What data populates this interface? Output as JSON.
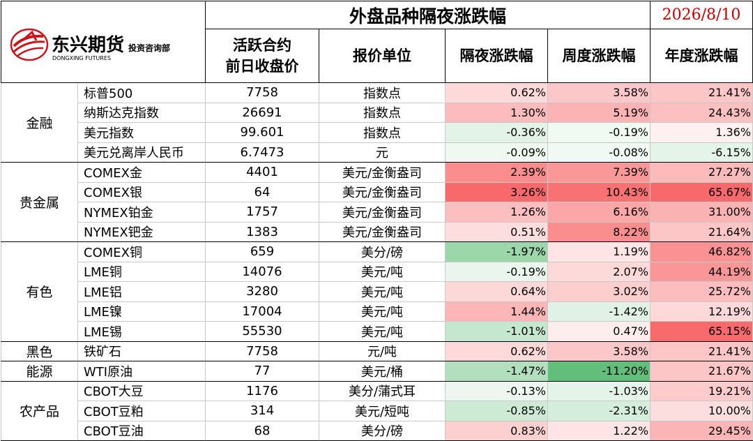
{
  "header": {
    "title": "外盘品种隔夜涨跌幅",
    "date": "2026/8/10",
    "logo_cn": "东兴期货",
    "logo_en": "DONGXING FUTURES",
    "logo_dept": "投资咨询部",
    "col_price_line1": "活跃合约",
    "col_price_line2": "前日收盘价",
    "col_unit": "报价单位",
    "col_overnight": "隔夜涨跌幅",
    "col_week": "周度涨跌幅",
    "col_year": "年度涨跌幅"
  },
  "groups": [
    {
      "category": "金融",
      "rows": [
        {
          "name": "标普500",
          "price": "7758",
          "unit": "指数点",
          "overnight": "0.62%",
          "week": "3.58%",
          "year": "21.41%"
        },
        {
          "name": "纳斯达克指数",
          "price": "26691",
          "unit": "指数点",
          "overnight": "1.30%",
          "week": "5.19%",
          "year": "24.43%"
        },
        {
          "name": "美元指数",
          "price": "99.601",
          "unit": "指数点",
          "overnight": "-0.36%",
          "week": "-0.19%",
          "year": "1.36%"
        },
        {
          "name": "美元兑离岸人民币",
          "price": "6.7473",
          "unit": "元",
          "overnight": "-0.09%",
          "week": "-0.08%",
          "year": "-6.15%"
        }
      ]
    },
    {
      "category": "贵金属",
      "rows": [
        {
          "name": "COMEX金",
          "price": "4401",
          "unit": "美元/金衡盎司",
          "overnight": "2.39%",
          "week": "7.39%",
          "year": "27.27%"
        },
        {
          "name": "COMEX银",
          "price": "64",
          "unit": "美元/金衡盎司",
          "overnight": "3.26%",
          "week": "10.43%",
          "year": "65.67%"
        },
        {
          "name": "NYMEX铂金",
          "price": "1757",
          "unit": "美元/金衡盎司",
          "overnight": "1.26%",
          "week": "6.16%",
          "year": "31.00%"
        },
        {
          "name": "NYMEX钯金",
          "price": "1383",
          "unit": "美元/金衡盎司",
          "overnight": "0.51%",
          "week": "8.22%",
          "year": "21.64%"
        }
      ]
    },
    {
      "category": "有色",
      "rows": [
        {
          "name": "COMEX铜",
          "price": "659",
          "unit": "美分/磅",
          "overnight": "-1.97%",
          "week": "1.19%",
          "year": "46.82%"
        },
        {
          "name": "LME铜",
          "price": "14076",
          "unit": "美元/吨",
          "overnight": "-0.19%",
          "week": "2.07%",
          "year": "44.19%"
        },
        {
          "name": "LME铝",
          "price": "3280",
          "unit": "美元/吨",
          "overnight": "0.64%",
          "week": "3.02%",
          "year": "25.72%"
        },
        {
          "name": "LME镍",
          "price": "17004",
          "unit": "美元/吨",
          "overnight": "1.44%",
          "week": "-1.42%",
          "year": "12.19%"
        },
        {
          "name": "LME锡",
          "price": "55530",
          "unit": "美元/吨",
          "overnight": "-1.01%",
          "week": "0.47%",
          "year": "65.15%"
        }
      ]
    },
    {
      "category": "黑色",
      "rows": [
        {
          "name": "铁矿石",
          "price": "7758",
          "unit": "元/吨",
          "overnight": "0.62%",
          "week": "3.58%",
          "year": "21.41%"
        }
      ]
    },
    {
      "category": "能源",
      "rows": [
        {
          "name": "WTI原油",
          "price": "77",
          "unit": "美元/桶",
          "overnight": "-1.47%",
          "week": "-11.20%",
          "year": "21.67%"
        }
      ]
    },
    {
      "category": "农产品",
      "rows": [
        {
          "name": "CBOT大豆",
          "price": "1176",
          "unit": "美分/蒲式耳",
          "overnight": "-0.13%",
          "week": "-1.03%",
          "year": "19.21%"
        },
        {
          "name": "CBOT豆粕",
          "price": "314",
          "unit": "美元/短吨",
          "overnight": "-0.85%",
          "week": "-2.31%",
          "year": "10.00%"
        },
        {
          "name": "CBOT豆油",
          "price": "68",
          "unit": "美分/磅",
          "overnight": "0.83%",
          "week": "1.22%",
          "year": "29.45%"
        }
      ]
    }
  ],
  "colors": {
    "positive": "#f8696b",
    "negative": "#63be7b",
    "title_date": "#c00000",
    "logo_red": "#c8161d"
  }
}
